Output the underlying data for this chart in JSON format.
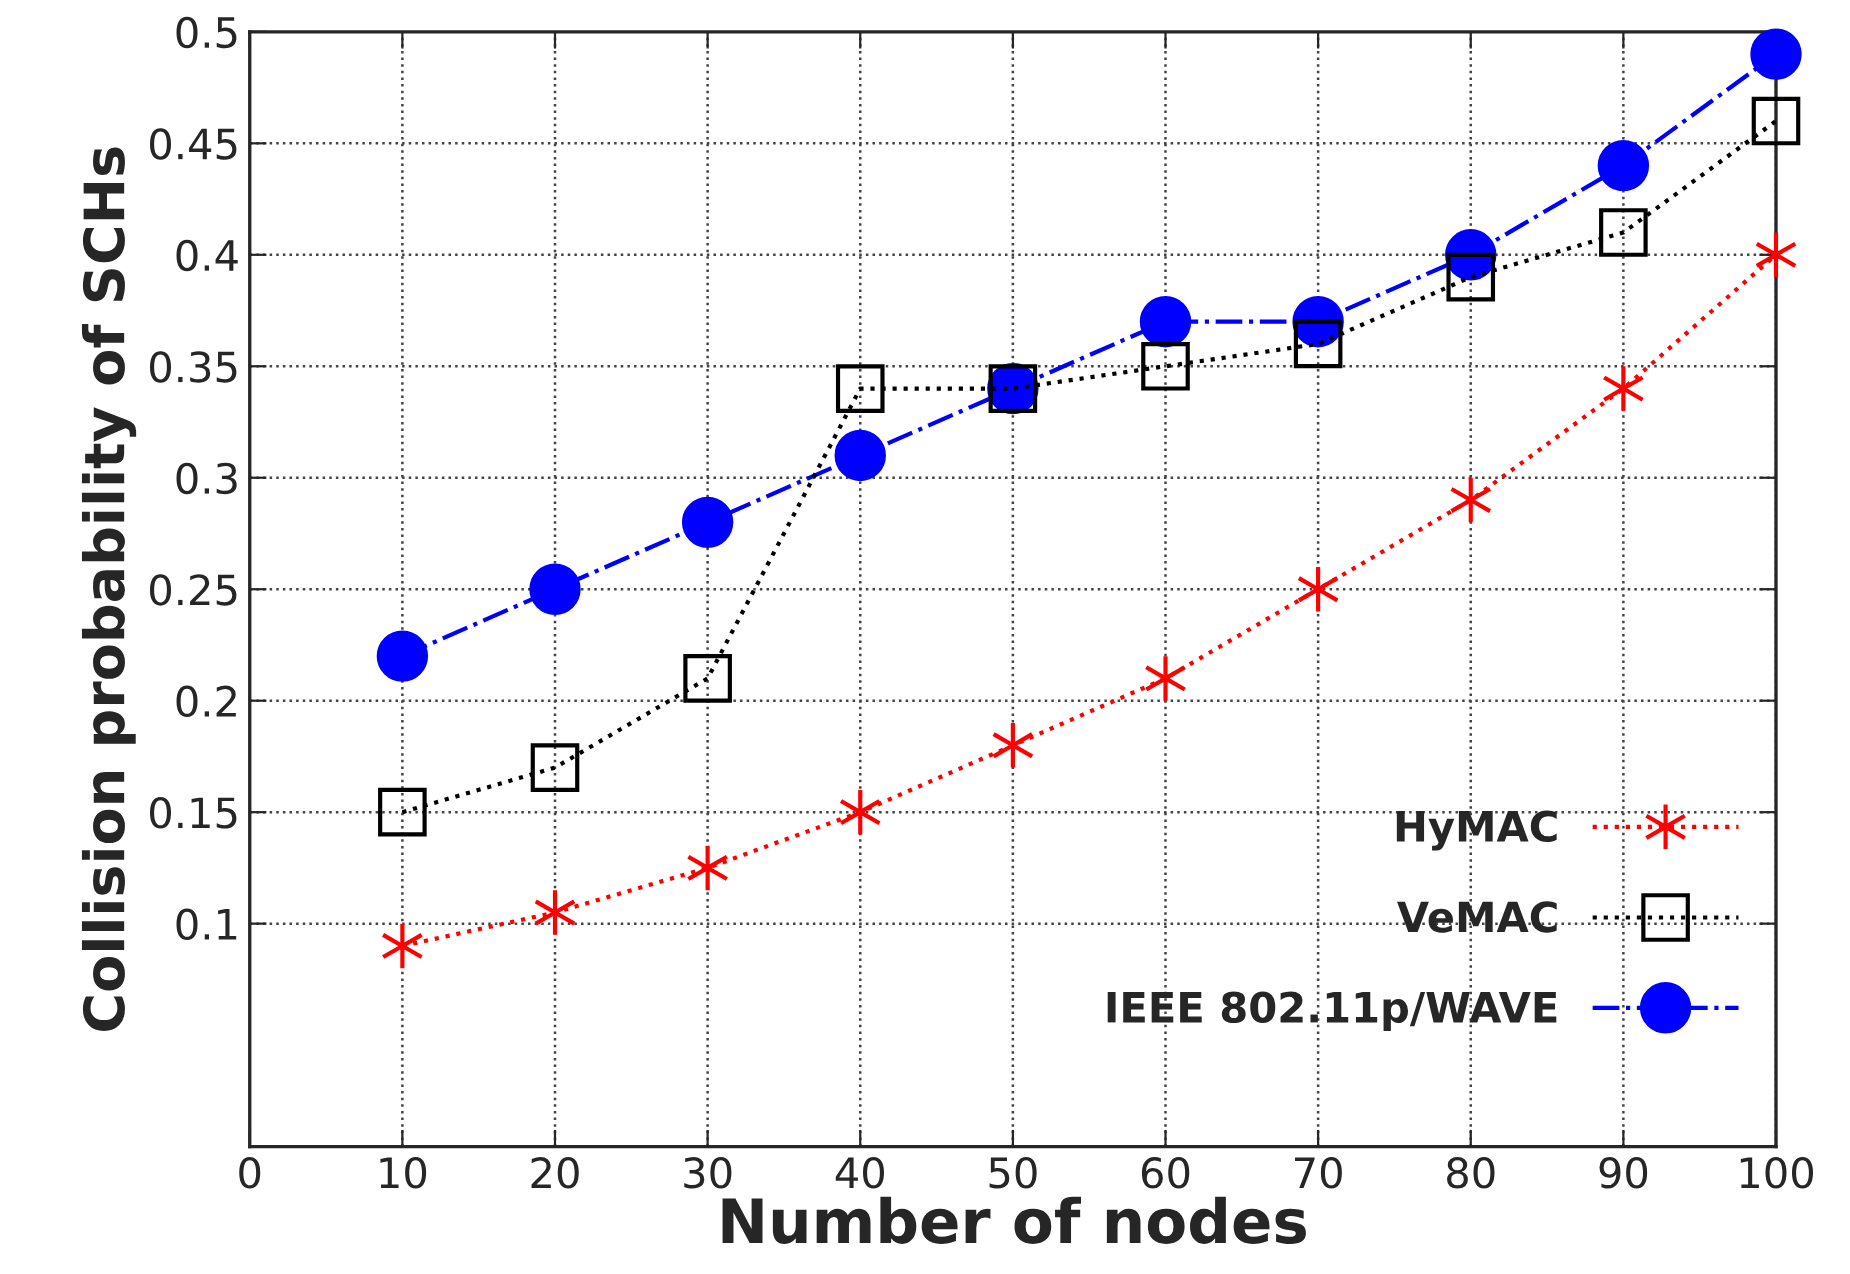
{
  "chart_data": {
    "type": "line",
    "xlabel": "Number of nodes",
    "ylabel": "Collision probability of SCHs",
    "x": [
      10,
      20,
      30,
      40,
      50,
      60,
      70,
      80,
      90,
      100
    ],
    "series": [
      {
        "name": "HyMAC",
        "color": "#ff0000",
        "marker": "cross",
        "line_style": "dotted",
        "values": [
          0.09,
          0.105,
          0.125,
          0.15,
          0.18,
          0.21,
          0.25,
          0.29,
          0.34,
          0.4
        ]
      },
      {
        "name": "VeMAC",
        "color": "#000000",
        "marker": "square",
        "line_style": "dotted",
        "values": [
          0.15,
          0.17,
          0.21,
          0.34,
          0.34,
          0.35,
          0.36,
          0.39,
          0.41,
          0.46
        ]
      },
      {
        "name": "IEEE 802.11p/WAVE",
        "color": "#0000ff",
        "marker": "circle",
        "line_style": "dashed",
        "values": [
          0.22,
          0.25,
          0.28,
          0.31,
          0.34,
          0.37,
          0.37,
          0.4,
          0.44,
          0.49
        ]
      }
    ],
    "xlim": [
      0,
      100
    ],
    "xticks": [
      0,
      10,
      20,
      30,
      40,
      50,
      60,
      70,
      80,
      90,
      100
    ],
    "ylim": [
      0,
      0.5
    ],
    "yticks": [
      0.1,
      0.15,
      0.2,
      0.25,
      0.3,
      0.35,
      0.4,
      0.45,
      0.5
    ],
    "grid": true,
    "legend": "bottom right"
  }
}
